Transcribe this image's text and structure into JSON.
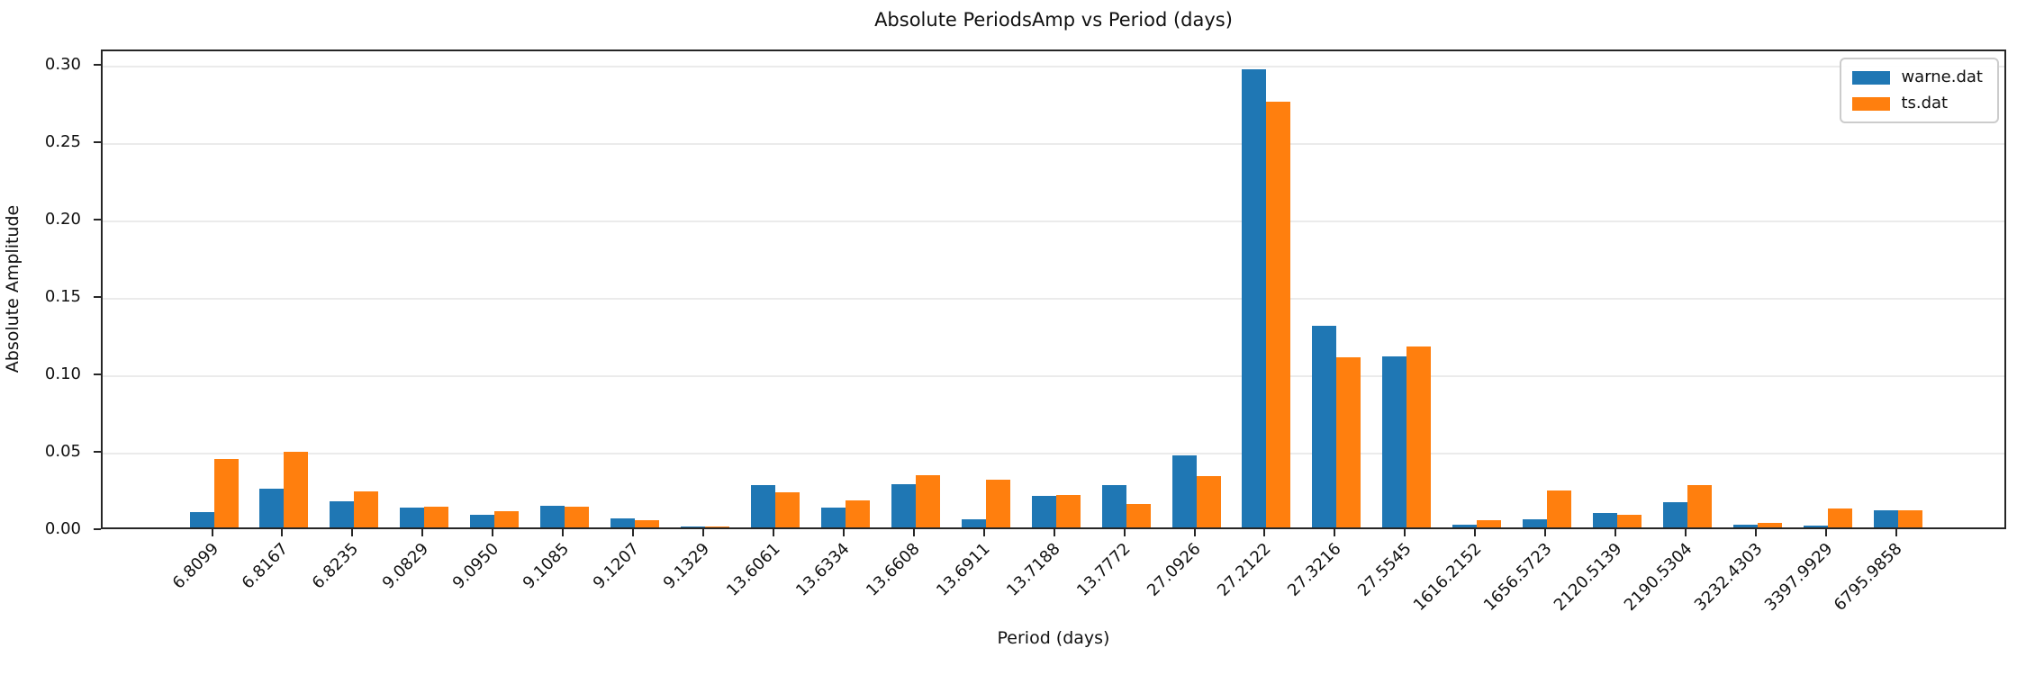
{
  "chart_data": {
    "type": "bar",
    "title": "Absolute PeriodsAmp vs Period (days)",
    "xlabel": "Period (days)",
    "ylabel": "Absolute Amplitude",
    "categories": [
      "6.8099",
      "6.8167",
      "6.8235",
      "9.0829",
      "9.0950",
      "9.1085",
      "9.1207",
      "9.1329",
      "13.6061",
      "13.6334",
      "13.6608",
      "13.6911",
      "13.7188",
      "13.7772",
      "27.0926",
      "27.2122",
      "27.3216",
      "27.5545",
      "1616.2152",
      "1656.5723",
      "2120.5139",
      "2190.5304",
      "3232.4303",
      "3397.9929",
      "6795.9858"
    ],
    "series": [
      {
        "name": "warne.dat",
        "color": "#1f77b4",
        "values": [
          0.0101,
          0.0248,
          0.0171,
          0.0129,
          0.0079,
          0.0141,
          0.0056,
          0.0003,
          0.0272,
          0.0128,
          0.028,
          0.0051,
          0.0201,
          0.0272,
          0.0463,
          0.2959,
          0.1301,
          0.1107,
          0.0018,
          0.0053,
          0.0093,
          0.0164,
          0.002,
          0.0014,
          0.0113
        ]
      },
      {
        "name": "ts.dat",
        "color": "#ff7f0e",
        "values": [
          0.0442,
          0.0488,
          0.0234,
          0.0135,
          0.0105,
          0.0135,
          0.0046,
          0.0008,
          0.0228,
          0.0173,
          0.0339,
          0.0309,
          0.0209,
          0.0154,
          0.0329,
          0.275,
          0.1098,
          0.1172,
          0.0047,
          0.0241,
          0.0079,
          0.0273,
          0.003,
          0.0123,
          0.0111
        ]
      }
    ],
    "ylim": [
      0,
      0.31
    ],
    "yticks": [
      0.0,
      0.05,
      0.1,
      0.15,
      0.2,
      0.25,
      0.3
    ],
    "ytick_labels": [
      "0.00",
      "0.05",
      "0.10",
      "0.15",
      "0.20",
      "0.25",
      "0.30"
    ],
    "grid": "horizontal",
    "gridcolor": "#ebebeb",
    "legend_position": "upper right",
    "x_tick_rotation": 45,
    "bar_group_offset": "blue left of tick, orange right of tick"
  }
}
